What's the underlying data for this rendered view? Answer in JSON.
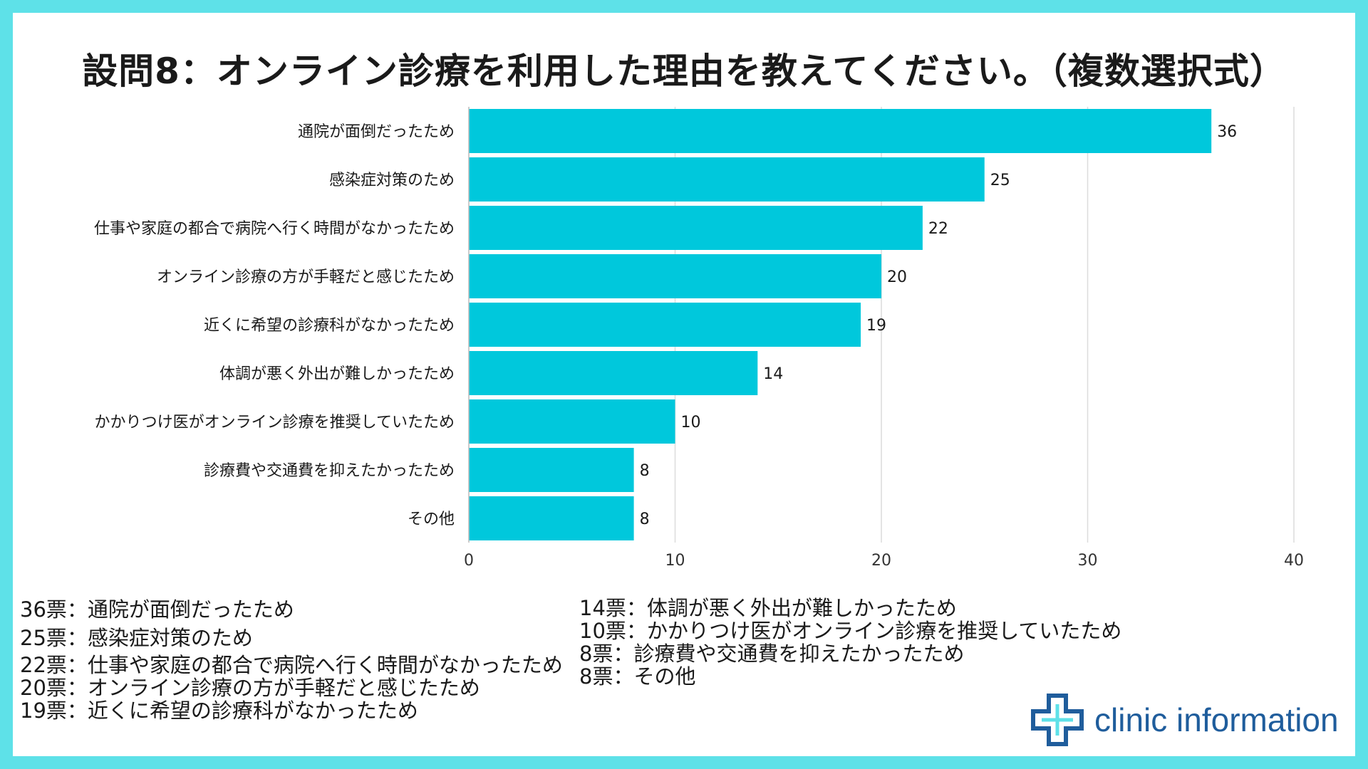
{
  "title": "設問8：オンライン診療を利用した理由を教えてください。（複数選択式）",
  "colors": {
    "frame": "#5ee1e8",
    "bar": "#00c8dc",
    "grid": "#dcdcdc",
    "logo": "#1f5d9c"
  },
  "chart_data": {
    "type": "bar",
    "orientation": "horizontal",
    "categories": [
      "通院が面倒だったため",
      "感染症対策のため",
      "仕事や家庭の都合で病院へ行く時間がなかったため",
      "オンライン診療の方が手軽だと感じたため",
      "近くに希望の診療科がなかったため",
      "体調が悪く外出が難しかったため",
      "かかりつけ医がオンライン診療を推奨していたため",
      "診療費や交通費を抑えたかったため",
      "その他"
    ],
    "values": [
      36,
      25,
      22,
      20,
      19,
      14,
      10,
      8,
      8
    ],
    "xlim": [
      0,
      40
    ],
    "xticks": [
      "0",
      "10",
      "20",
      "30",
      "40"
    ],
    "grid": true,
    "xlabel": "",
    "ylabel": ""
  },
  "legend": {
    "left": [
      "36票：通院が面倒だったため",
      "25票：感染症対策のため",
      "22票：仕事や家庭の都合で病院へ行く時間がなかったため",
      "20票：オンライン診療の方が手軽だと感じたため",
      "19票：近くに希望の診療科がなかったため"
    ],
    "right": [
      "14票：体調が悪く外出が難しかったため",
      "10票：かかりつけ医がオンライン診療を推奨していたため",
      "8票：診療費や交通費を抑えたかったため",
      "8票：その他"
    ]
  },
  "logo": {
    "text": "clinic information",
    "icon": "medical-cross-icon"
  }
}
